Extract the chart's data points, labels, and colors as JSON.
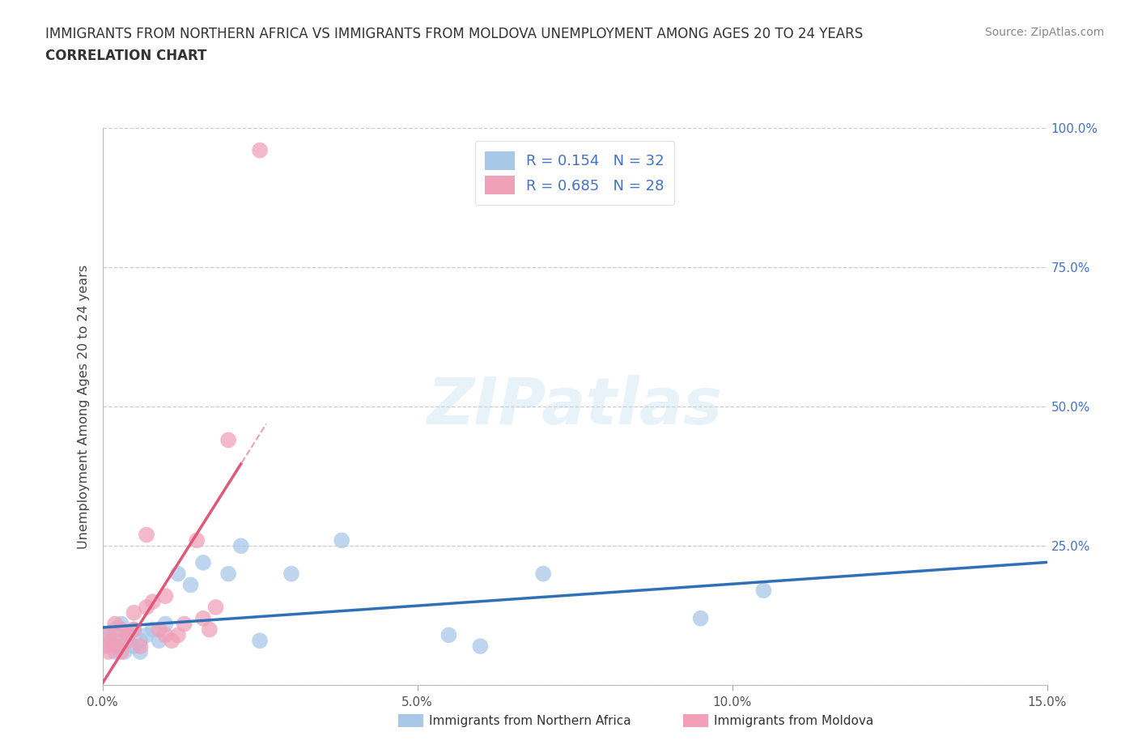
{
  "title_line1": "IMMIGRANTS FROM NORTHERN AFRICA VS IMMIGRANTS FROM MOLDOVA UNEMPLOYMENT AMONG AGES 20 TO 24 YEARS",
  "title_line2": "CORRELATION CHART",
  "source_text": "Source: ZipAtlas.com",
  "ylabel": "Unemployment Among Ages 20 to 24 years",
  "xlim": [
    0.0,
    0.15
  ],
  "ylim": [
    0.0,
    1.0
  ],
  "xtick_vals": [
    0.0,
    0.05,
    0.1,
    0.15
  ],
  "xtick_labels": [
    "0.0%",
    "5.0%",
    "10.0%",
    "15.0%"
  ],
  "ytick_vals": [
    0.0,
    0.25,
    0.5,
    0.75,
    1.0
  ],
  "right_ytick_labels": [
    "",
    "25.0%",
    "50.0%",
    "75.0%",
    "100.0%"
  ],
  "blue_dot_color": "#a8c8e8",
  "pink_dot_color": "#f0a0b8",
  "blue_line_color": "#3070b8",
  "pink_line_color": "#e05878",
  "pink_dashed_color": "#e8a0b8",
  "R_blue": 0.154,
  "N_blue": 32,
  "R_pink": 0.685,
  "N_pink": 28,
  "blue_scatter_x": [
    0.0008,
    0.001,
    0.0015,
    0.002,
    0.002,
    0.0025,
    0.003,
    0.003,
    0.0035,
    0.004,
    0.004,
    0.005,
    0.005,
    0.006,
    0.006,
    0.007,
    0.008,
    0.009,
    0.01,
    0.012,
    0.014,
    0.016,
    0.02,
    0.022,
    0.025,
    0.03,
    0.038,
    0.055,
    0.06,
    0.07,
    0.095,
    0.105
  ],
  "blue_scatter_y": [
    0.09,
    0.07,
    0.08,
    0.06,
    0.1,
    0.08,
    0.07,
    0.11,
    0.06,
    0.09,
    0.08,
    0.07,
    0.1,
    0.08,
    0.06,
    0.09,
    0.1,
    0.08,
    0.11,
    0.2,
    0.18,
    0.22,
    0.2,
    0.25,
    0.08,
    0.2,
    0.26,
    0.09,
    0.07,
    0.2,
    0.12,
    0.17
  ],
  "pink_scatter_x": [
    0.0005,
    0.001,
    0.001,
    0.0015,
    0.002,
    0.002,
    0.003,
    0.003,
    0.004,
    0.004,
    0.005,
    0.005,
    0.006,
    0.007,
    0.007,
    0.008,
    0.009,
    0.01,
    0.01,
    0.011,
    0.012,
    0.013,
    0.015,
    0.016,
    0.017,
    0.018,
    0.02,
    0.025
  ],
  "pink_scatter_y": [
    0.07,
    0.06,
    0.09,
    0.08,
    0.07,
    0.11,
    0.06,
    0.1,
    0.09,
    0.08,
    0.1,
    0.13,
    0.07,
    0.14,
    0.27,
    0.15,
    0.1,
    0.09,
    0.16,
    0.08,
    0.09,
    0.11,
    0.26,
    0.12,
    0.1,
    0.14,
    0.44,
    0.96
  ],
  "watermark_text": "ZIPatlas",
  "legend_label_blue": "Immigrants from Northern Africa",
  "legend_label_pink": "Immigrants from Moldova"
}
